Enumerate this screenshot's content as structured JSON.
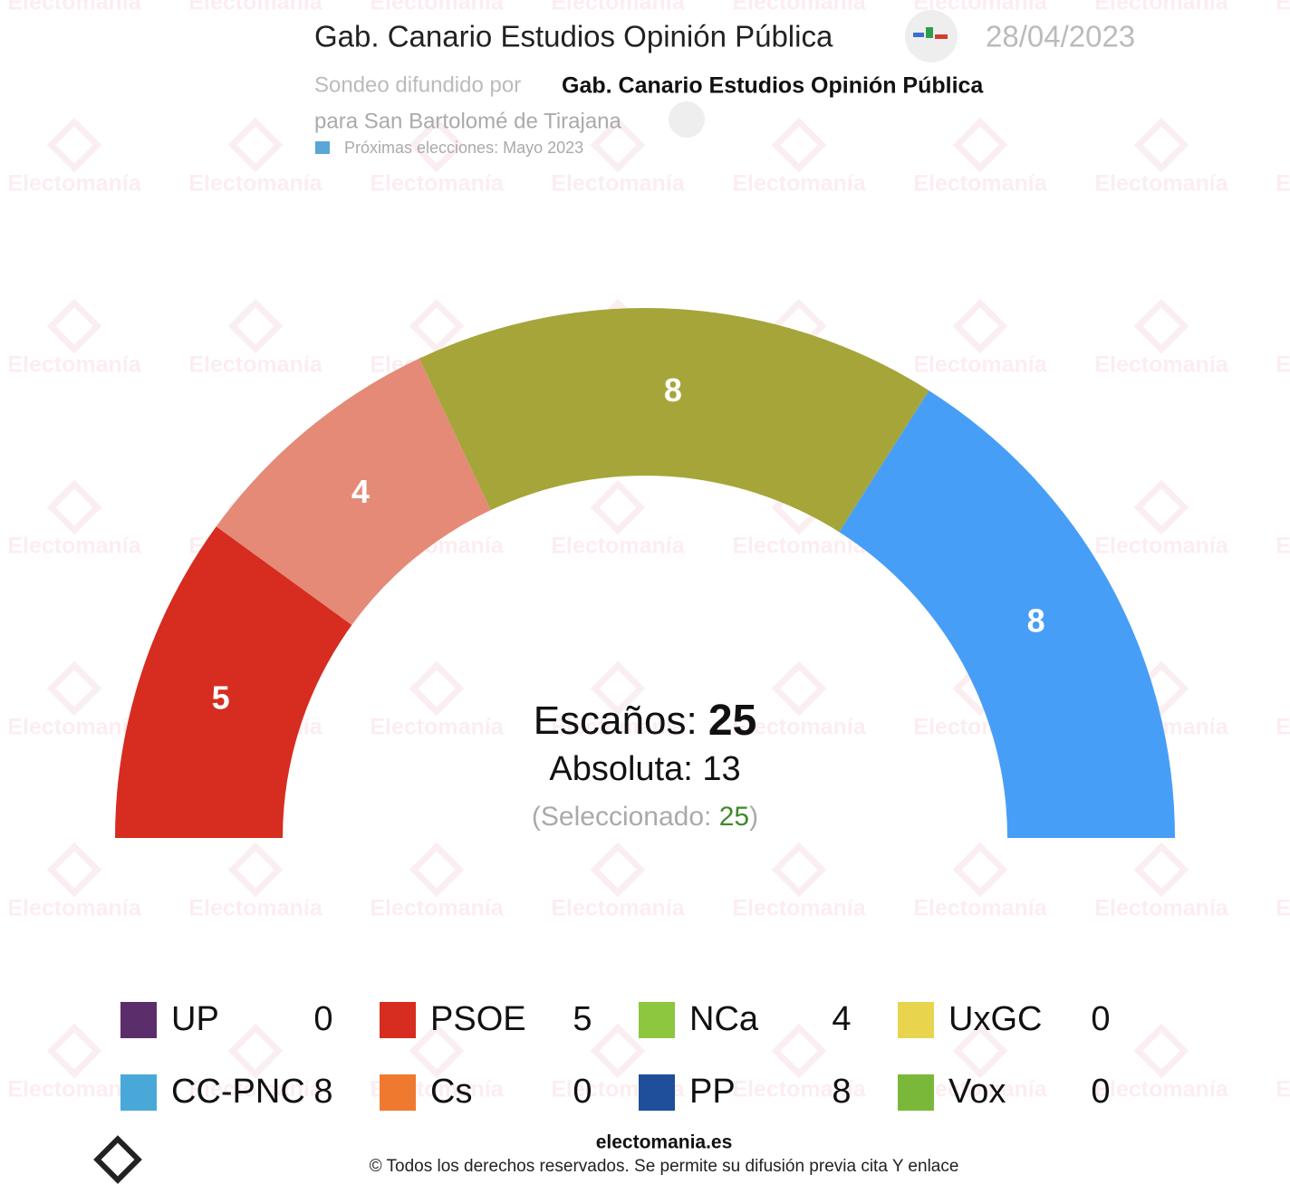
{
  "header": {
    "title": "Gab. Canario Estudios Opinión Pública",
    "date": "28/04/2023",
    "spread_by": "Sondeo difundido por",
    "pollster": "Gab. Canario Estudios Opinión Pública",
    "place": "para San Bartolomé de Tirajana",
    "next_elections": "Próximas elecciones: Mayo 2023"
  },
  "watermark": "Electomanía",
  "chart_data": {
    "type": "half-donut",
    "categories": [
      "UP",
      "PSOE",
      "NCa",
      "UxGC",
      "CC-PNC",
      "Cs",
      "PP",
      "Vox"
    ],
    "values": [
      0,
      5,
      4,
      0,
      8,
      0,
      8,
      0
    ],
    "colors": [
      "#5b2d6b",
      "#d62d20",
      "#e48a77",
      "#e8d44d",
      "#a6a53a",
      "#ef7a2f",
      "#479ef7",
      "#7ab83a"
    ],
    "icon_colors": [
      "#5b2d6b",
      "#d62d20",
      "#8dc63f",
      "#e8d44d",
      "#4aa8d8",
      "#ef7a2f",
      "#1f4e9a",
      "#7ab83a"
    ],
    "seats_label": "Escaños:",
    "seats": 25,
    "majority_label": "Absoluta:",
    "majority": 13,
    "selected_label": "(Seleccionado:",
    "selected": 25,
    "selected_close": ")"
  },
  "footer": {
    "site": "electomania.es",
    "rights": "© Todos los derechos reservados. Se permite su difusión previa cita Y enlace"
  }
}
